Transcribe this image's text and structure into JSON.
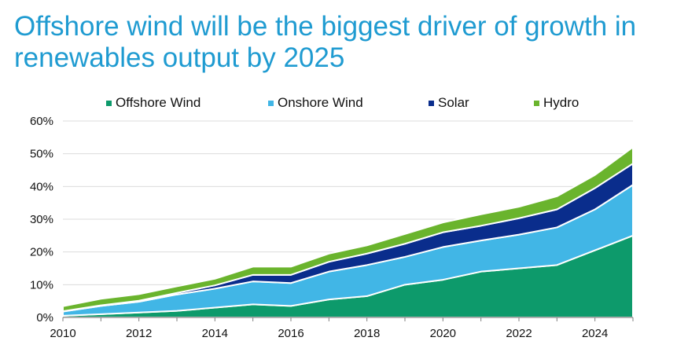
{
  "title": "Offshore wind will be the biggest driver of growth in renewables output by 2025",
  "chart_data": {
    "type": "area",
    "stacked": true,
    "title": "Offshore wind will be the biggest driver of growth in renewables output by 2025",
    "x": [
      2010,
      2011,
      2012,
      2013,
      2014,
      2015,
      2016,
      2017,
      2018,
      2019,
      2020,
      2021,
      2022,
      2023,
      2024,
      2025
    ],
    "xticks": [
      "2010",
      "2012",
      "2014",
      "2016",
      "2018",
      "2020",
      "2022",
      "2024"
    ],
    "xtick_values": [
      2010,
      2012,
      2014,
      2016,
      2018,
      2020,
      2022,
      2024
    ],
    "yticks": [
      "0%",
      "10%",
      "20%",
      "30%",
      "40%",
      "50%",
      "60%"
    ],
    "ylim": [
      0,
      60
    ],
    "xlim": [
      2010,
      2025
    ],
    "grid": "horizontal",
    "legend": "top",
    "series": [
      {
        "name": "Offshore Wind",
        "color": "#0d9a6b",
        "values": [
          0.5,
          1.0,
          1.5,
          2.0,
          3.0,
          4.0,
          3.5,
          5.5,
          6.5,
          10.0,
          11.5,
          14.0,
          15.0,
          16.0,
          20.5,
          25.0
        ]
      },
      {
        "name": "Onshore Wind",
        "color": "#41b6e6",
        "values": [
          1.3,
          2.5,
          3.3,
          5.0,
          5.8,
          7.0,
          7.0,
          8.5,
          9.5,
          8.5,
          10.0,
          9.5,
          10.3,
          11.5,
          12.5,
          15.5
        ]
      },
      {
        "name": "Solar",
        "color": "#0a2d8c",
        "values": [
          0.1,
          0.2,
          0.3,
          0.5,
          1.0,
          2.0,
          2.5,
          3.0,
          3.5,
          4.0,
          4.5,
          4.5,
          5.0,
          5.5,
          6.5,
          6.5
        ]
      },
      {
        "name": "Hydro",
        "color": "#6ab42d",
        "values": [
          1.5,
          2.0,
          2.0,
          2.0,
          2.0,
          2.5,
          2.5,
          2.5,
          2.5,
          3.0,
          3.0,
          3.5,
          3.5,
          4.0,
          4.0,
          5.0
        ]
      }
    ]
  }
}
